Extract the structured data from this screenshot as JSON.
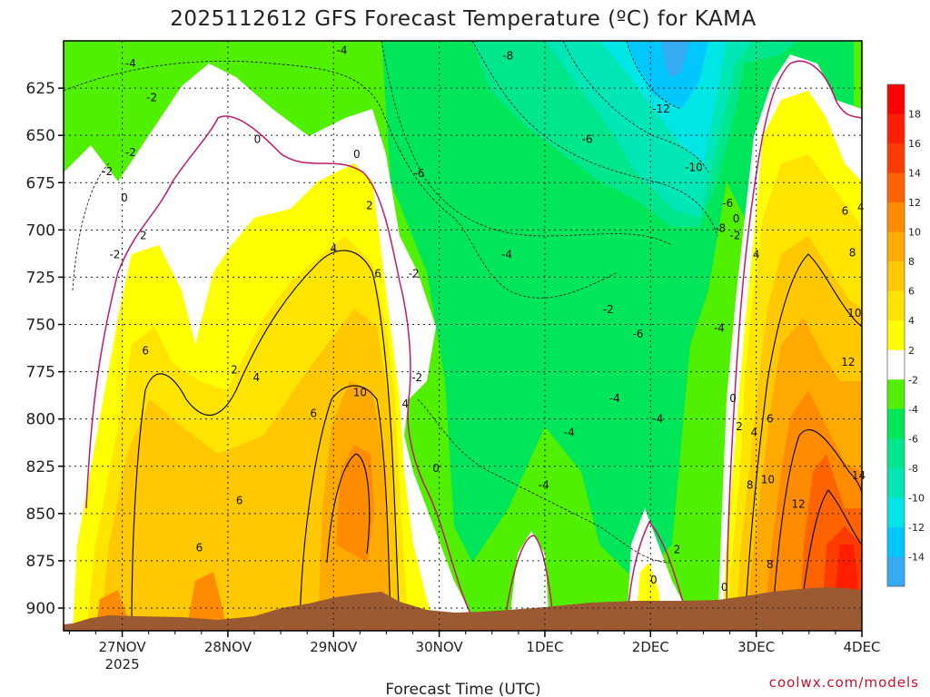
{
  "chart_data": {
    "type": "heatmap",
    "title": "2025112612 GFS Forecast Temperature (ºC) for KAMA",
    "xlabel": "Forecast Time (UTC)",
    "credit": "coolwx.com/models",
    "y_ticks": [
      625,
      650,
      675,
      700,
      725,
      750,
      775,
      800,
      825,
      850,
      875,
      900
    ],
    "x_ticks": [
      {
        "label": "27NOV",
        "sub": "2025"
      },
      {
        "label": "28NOV",
        "sub": ""
      },
      {
        "label": "29NOV",
        "sub": ""
      },
      {
        "label": "30NOV",
        "sub": ""
      },
      {
        "label": "1DEC",
        "sub": ""
      },
      {
        "label": "2DEC",
        "sub": ""
      },
      {
        "label": "3DEC",
        "sub": ""
      },
      {
        "label": "4DEC",
        "sub": ""
      }
    ],
    "colorbar": {
      "levels": [
        -16,
        -14,
        -12,
        -10,
        -8,
        -6,
        -4,
        -2,
        2,
        4,
        6,
        8,
        10,
        12,
        14,
        16,
        18,
        20
      ],
      "labels": [
        18,
        16,
        14,
        12,
        10,
        8,
        6,
        4,
        2,
        -2,
        -4,
        -6,
        -8,
        -10,
        -12,
        -14
      ],
      "colors": [
        "#35abf2",
        "#00c8ff",
        "#00e6e6",
        "#00e6b4",
        "#00e68c",
        "#00e65a",
        "#50f000",
        "#ffffff",
        "#ffff00",
        "#ffe400",
        "#ffc800",
        "#ffaa00",
        "#ff8c00",
        "#ff6400",
        "#ff3c00",
        "#ff1e00",
        "#ff0000"
      ]
    },
    "contour_labels": [
      {
        "text": "-4",
        "day": 0.08,
        "p": 612
      },
      {
        "text": "-2",
        "day": 0.28,
        "p": 630
      },
      {
        "text": "-4",
        "day": 2.08,
        "p": 605
      },
      {
        "text": "-8",
        "day": 3.65,
        "p": 608
      },
      {
        "text": "-12",
        "day": 5.1,
        "p": 636
      },
      {
        "text": "-2",
        "day": 0.08,
        "p": 659
      },
      {
        "text": "0",
        "day": 1.28,
        "p": 652
      },
      {
        "text": "0",
        "day": 2.22,
        "p": 660
      },
      {
        "text": "-6",
        "day": 4.4,
        "p": 652
      },
      {
        "text": "-2",
        "day": -0.14,
        "p": 669
      },
      {
        "text": "-6",
        "day": 2.81,
        "p": 670
      },
      {
        "text": "-10",
        "day": 5.41,
        "p": 667
      },
      {
        "text": "0",
        "day": 0.02,
        "p": 683
      },
      {
        "text": "2",
        "day": 2.34,
        "p": 687
      },
      {
        "text": "6",
        "day": 6.84,
        "p": 690
      },
      {
        "text": "4",
        "day": 6.99,
        "p": 688
      },
      {
        "text": "0",
        "day": 5.81,
        "p": 694
      },
      {
        "text": "-6",
        "day": 5.73,
        "p": 686
      },
      {
        "text": "-8",
        "day": 5.66,
        "p": 699
      },
      {
        "text": "2",
        "day": 0.2,
        "p": 703
      },
      {
        "text": "-2",
        "day": 5.8,
        "p": 703
      },
      {
        "text": "-2",
        "day": -0.07,
        "p": 713
      },
      {
        "text": "4",
        "day": 2.0,
        "p": 710
      },
      {
        "text": "-4",
        "day": 3.64,
        "p": 713
      },
      {
        "text": "4",
        "day": 6.0,
        "p": 713
      },
      {
        "text": "8",
        "day": 6.91,
        "p": 712
      },
      {
        "text": "6",
        "day": 2.42,
        "p": 723
      },
      {
        "text": "-2",
        "day": 2.76,
        "p": 723
      },
      {
        "text": "-2",
        "day": 4.6,
        "p": 742
      },
      {
        "text": "10",
        "day": 6.93,
        "p": 744
      },
      {
        "text": "-6",
        "day": 4.88,
        "p": 755
      },
      {
        "text": "-4",
        "day": 5.65,
        "p": 752
      },
      {
        "text": "6",
        "day": 0.22,
        "p": 764
      },
      {
        "text": "12",
        "day": 6.87,
        "p": 770
      },
      {
        "text": "2",
        "day": 1.06,
        "p": 774
      },
      {
        "text": "4",
        "day": 1.27,
        "p": 778
      },
      {
        "text": "-2",
        "day": 2.79,
        "p": 778
      },
      {
        "text": "10",
        "day": 2.25,
        "p": 786
      },
      {
        "text": "4",
        "day": 2.68,
        "p": 792
      },
      {
        "text": "-4",
        "day": 4.66,
        "p": 789
      },
      {
        "text": "0",
        "day": 5.78,
        "p": 789
      },
      {
        "text": "6",
        "day": 1.81,
        "p": 797
      },
      {
        "text": "-4",
        "day": 5.07,
        "p": 800
      },
      {
        "text": "6",
        "day": 6.13,
        "p": 800
      },
      {
        "text": "2",
        "day": 5.84,
        "p": 804
      },
      {
        "text": "-4",
        "day": 4.23,
        "p": 807
      },
      {
        "text": "4",
        "day": 5.98,
        "p": 807
      },
      {
        "text": "0",
        "day": 2.97,
        "p": 826
      },
      {
        "text": "14",
        "day": 6.97,
        "p": 830
      },
      {
        "text": "10",
        "day": 6.11,
        "p": 832
      },
      {
        "text": "-4",
        "day": 3.99,
        "p": 835
      },
      {
        "text": "8",
        "day": 5.94,
        "p": 835
      },
      {
        "text": "6",
        "day": 1.11,
        "p": 843
      },
      {
        "text": "12",
        "day": 6.4,
        "p": 845
      },
      {
        "text": "6",
        "day": 0.73,
        "p": 868
      },
      {
        "text": "2",
        "day": 5.25,
        "p": 869
      },
      {
        "text": "8",
        "day": 6.13,
        "p": 877
      },
      {
        "text": "0",
        "day": 5.03,
        "p": 885
      },
      {
        "text": "0",
        "day": 5.7,
        "p": 889
      }
    ]
  }
}
